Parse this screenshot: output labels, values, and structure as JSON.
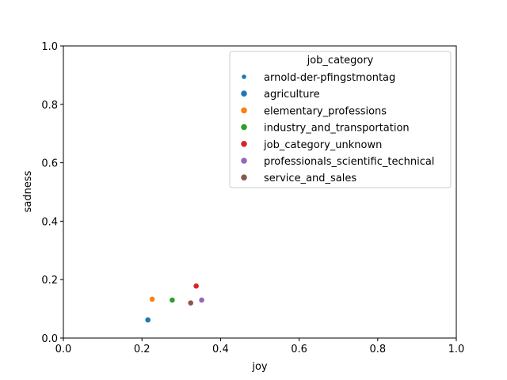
{
  "chart_data": {
    "type": "scatter",
    "xlabel": "joy",
    "ylabel": "sadness",
    "xlim": [
      0,
      1
    ],
    "ylim": [
      0,
      1
    ],
    "xticks": [
      "0.0",
      "0.2",
      "0.4",
      "0.6",
      "0.8",
      "1.0"
    ],
    "yticks": [
      "0.0",
      "0.2",
      "0.4",
      "0.6",
      "0.8",
      "1.0"
    ],
    "grid": false,
    "legend": {
      "title": "job_category",
      "placement": "upper right",
      "entries": [
        {
          "name": "arnold-der-pfingstmontag",
          "color": "#1f77b4",
          "marker": "small"
        },
        {
          "name": "agriculture",
          "color": "#1f77b4",
          "marker": "normal"
        },
        {
          "name": "elementary_professions",
          "color": "#ff7f0e",
          "marker": "normal"
        },
        {
          "name": "industry_and_transportation",
          "color": "#2ca02c",
          "marker": "normal"
        },
        {
          "name": "job_category_unknown",
          "color": "#d62728",
          "marker": "normal"
        },
        {
          "name": "professionals_scientific_technical",
          "color": "#9467bd",
          "marker": "normal"
        },
        {
          "name": "service_and_sales",
          "color": "#8c564b",
          "marker": "normal"
        }
      ]
    },
    "series": [
      {
        "name": "agriculture",
        "color": "#1f77b4",
        "x": [
          0.215
        ],
        "y": [
          0.062
        ]
      },
      {
        "name": "elementary_professions",
        "color": "#ff7f0e",
        "x": [
          0.226
        ],
        "y": [
          0.133
        ]
      },
      {
        "name": "industry_and_transportation",
        "color": "#2ca02c",
        "x": [
          0.277
        ],
        "y": [
          0.13
        ]
      },
      {
        "name": "job_category_unknown",
        "color": "#d62728",
        "x": [
          0.338
        ],
        "y": [
          0.178
        ]
      },
      {
        "name": "professionals_scientific_technical",
        "color": "#9467bd",
        "x": [
          0.352
        ],
        "y": [
          0.13
        ]
      },
      {
        "name": "service_and_sales",
        "color": "#8c564b",
        "x": [
          0.324
        ],
        "y": [
          0.12
        ]
      }
    ]
  }
}
